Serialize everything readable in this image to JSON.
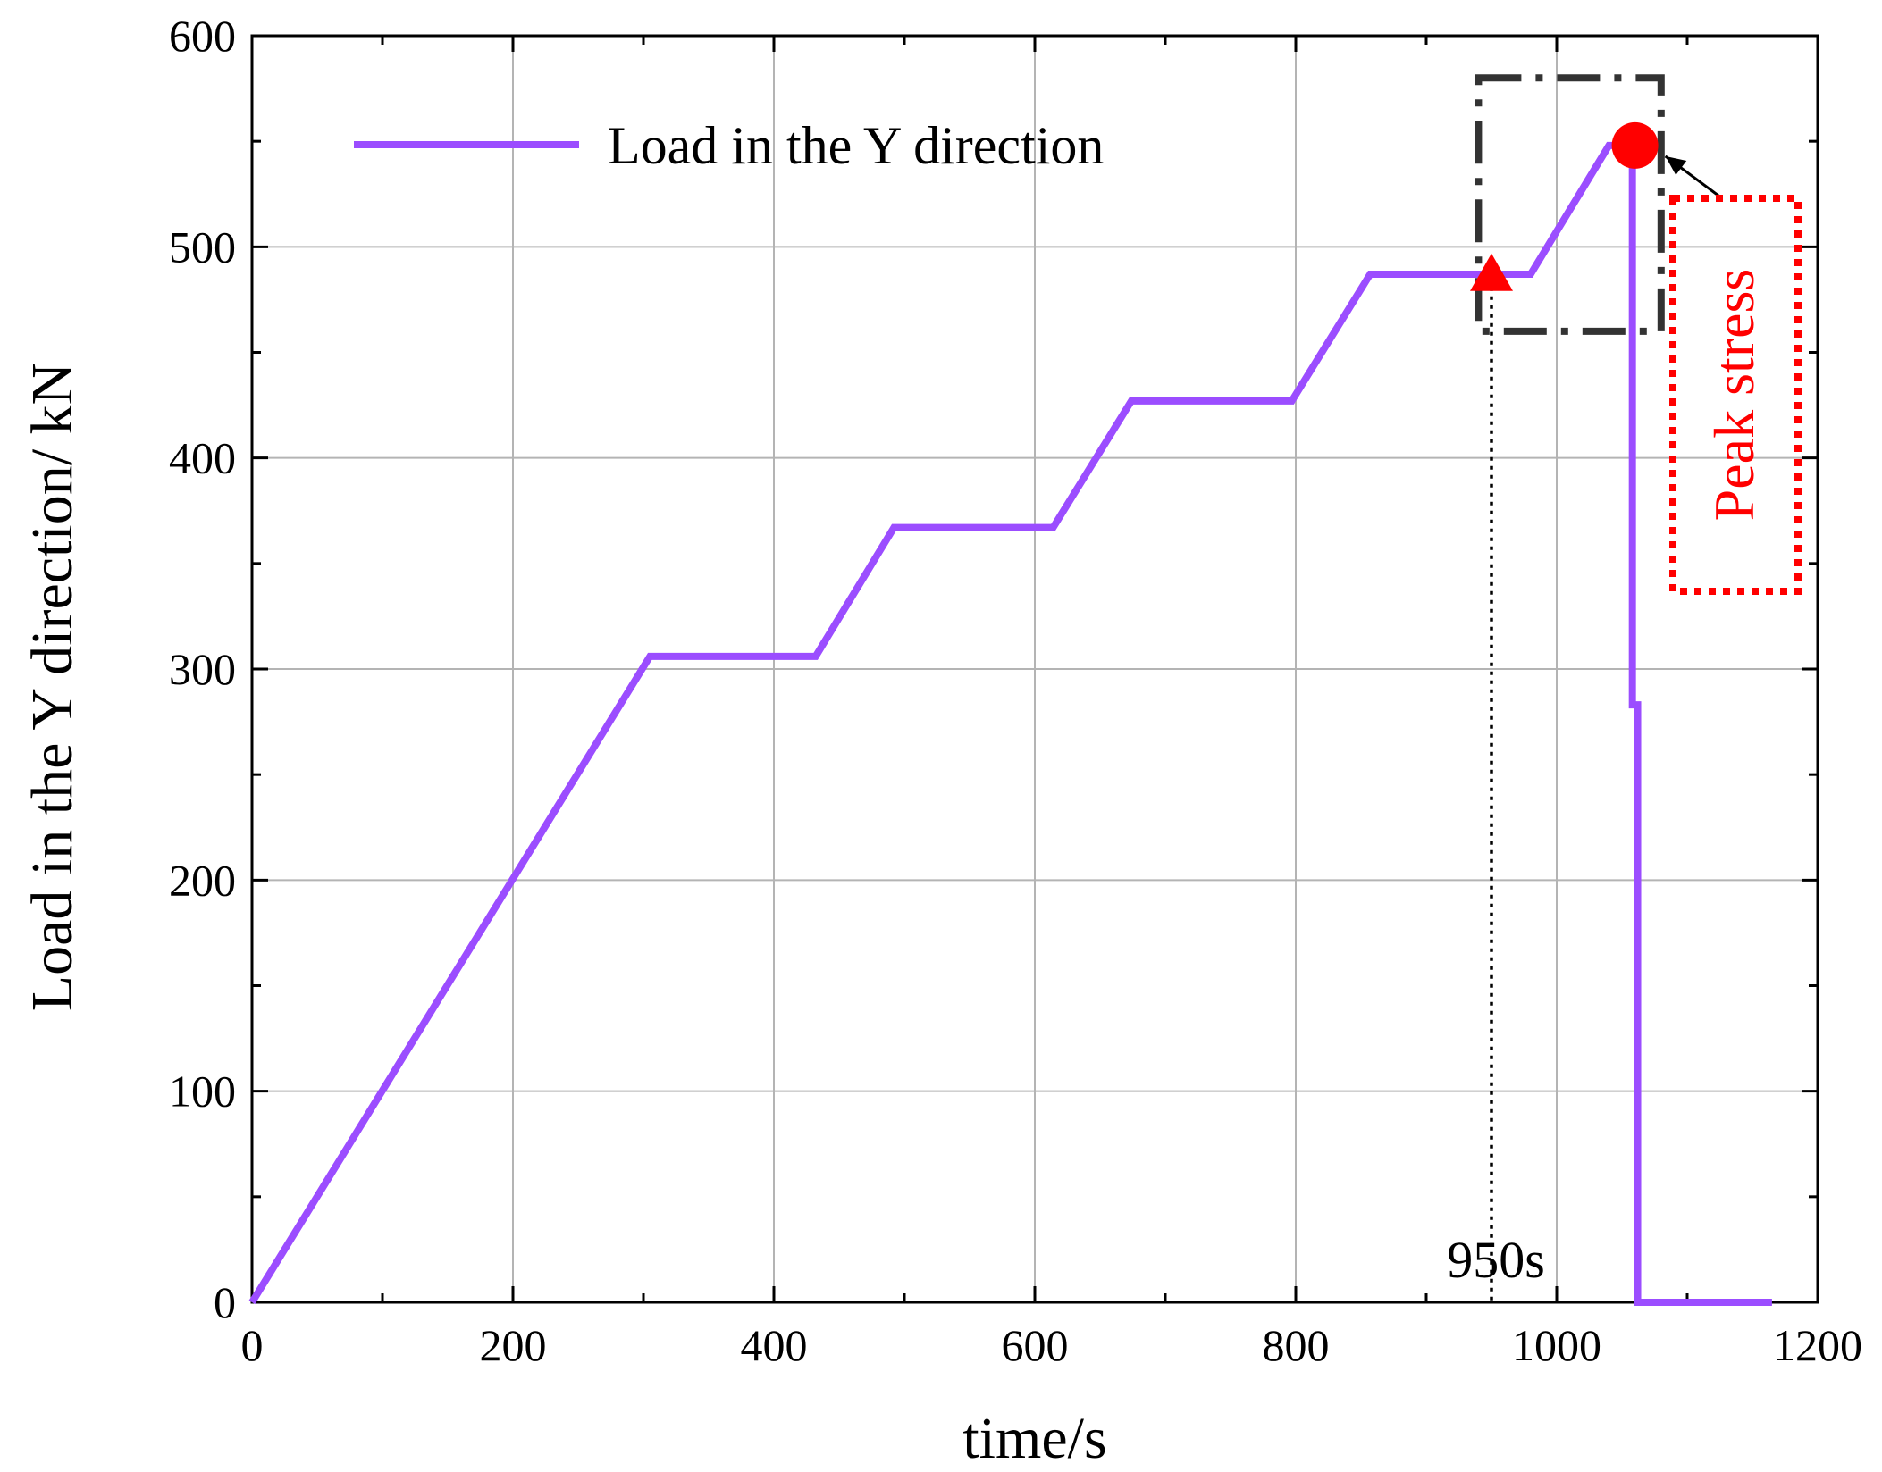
{
  "chart_data": {
    "type": "line",
    "title": "",
    "xlabel": "time/s",
    "ylabel": "Load in the Y direction/ kN",
    "xlim": [
      0,
      1200
    ],
    "ylim": [
      0,
      600
    ],
    "xticks": [
      "0",
      "200",
      "400",
      "600",
      "800",
      "1000",
      "1200"
    ],
    "yticks": [
      "0",
      "100",
      "200",
      "300",
      "400",
      "500",
      "600"
    ],
    "grid": true,
    "legend_position": "top-left",
    "series": [
      {
        "name": "Load in the Y direction",
        "color": "#9b4dff",
        "x": [
          0,
          305,
          432,
          492,
          614,
          674,
          797,
          857,
          980,
          1040,
          1055,
          1058,
          1058,
          1062,
          1062,
          1165
        ],
        "y": [
          0,
          306,
          306,
          367,
          367,
          427,
          427,
          487,
          487,
          548,
          548,
          545,
          283,
          283,
          0,
          0
        ]
      }
    ],
    "annotations": {
      "vline_label": "950s",
      "vline_x": 950,
      "triangle_marker": {
        "x": 950,
        "y": 485,
        "color": "#ff0000"
      },
      "peak_marker": {
        "x": 1060,
        "y": 548,
        "color": "#ff0000"
      },
      "zoom_box": {
        "x": [
          940,
          1080
        ],
        "y": [
          460,
          580
        ]
      },
      "peak_label": "Peak stress",
      "peak_label_color": "#ff0000"
    }
  }
}
